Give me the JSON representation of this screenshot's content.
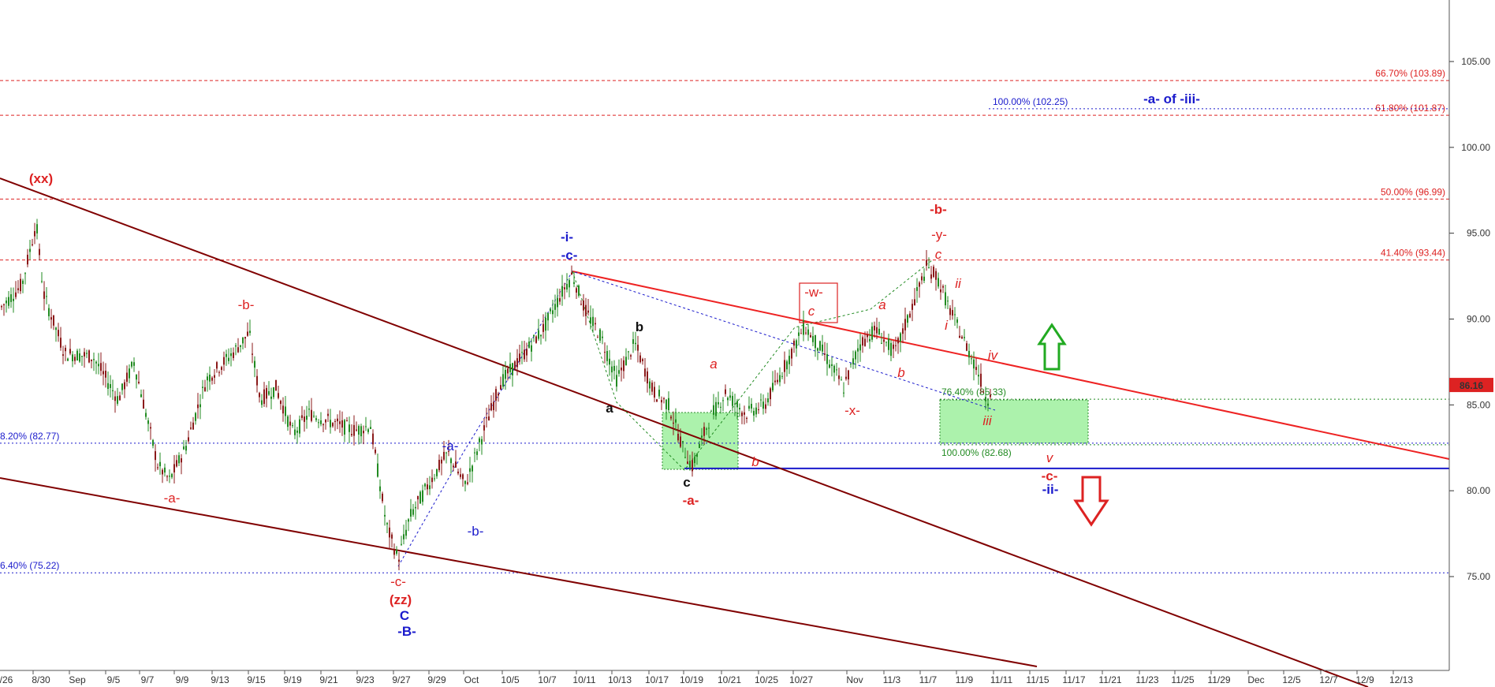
{
  "chart_data": {
    "type": "candlestick",
    "y_ticks": [
      "105.00",
      "100.00",
      "95.00",
      "90.00",
      "85.00",
      "80.00",
      "75.00"
    ],
    "y_range": [
      70.0,
      108.5
    ],
    "x_labels": [
      "/26",
      "8/30",
      "Sep",
      "9/5",
      "9/7",
      "9/9",
      "9/13",
      "9/15",
      "9/19",
      "9/21",
      "9/23",
      "9/27",
      "9/29",
      "Oct",
      "10/5",
      "10/7",
      "10/11",
      "10/13",
      "10/17",
      "10/19",
      "10/21",
      "10/25",
      "10/27",
      "Nov",
      "11/3",
      "11/7",
      "11/9",
      "11/11",
      "11/15",
      "11/17",
      "11/21",
      "11/23",
      "11/25",
      "11/29",
      "Dec",
      "12/5",
      "12/7",
      "12/9",
      "12/13"
    ],
    "last_price": "86.16",
    "horizontal_levels": [
      {
        "label": "66.70% (103.89)",
        "value": 103.89,
        "color": "#dd2222",
        "style": "dashed"
      },
      {
        "label": "61.80% (101.87)",
        "value": 101.87,
        "color": "#dd2222",
        "style": "dashed"
      },
      {
        "label": "100.00% (102.25)",
        "value": 102.25,
        "color": "#1a1acc",
        "style": "dotted"
      },
      {
        "label": "50.00% (96.99)",
        "value": 96.99,
        "color": "#dd2222",
        "style": "dashed"
      },
      {
        "label": "41.40% (93.44)",
        "value": 93.44,
        "color": "#dd2222",
        "style": "dashed"
      },
      {
        "label": "76.40% (85.33)",
        "value": 85.33,
        "color": "#228b22",
        "style": "dotted"
      },
      {
        "label": "100.00% (82.68)",
        "value": 82.68,
        "color": "#228b22",
        "style": "dotted"
      },
      {
        "label": "8.20% (82.77)",
        "value": 82.77,
        "color": "#1a1acc",
        "style": "dotted"
      },
      {
        "label": "6.40% (75.22)",
        "value": 75.22,
        "color": "#1a1acc",
        "style": "dotted"
      }
    ],
    "support_line": {
      "value": 81.3,
      "color": "#1a1acc"
    },
    "wave_labels": [
      {
        "text": "(xx)",
        "color": "#dd2222",
        "bold": true
      },
      {
        "text": "-b-",
        "color": "#dd2222",
        "bold": false
      },
      {
        "text": "-a-",
        "color": "#dd2222",
        "bold": false
      },
      {
        "text": "-a-",
        "color": "#1a1acc",
        "bold": false
      },
      {
        "text": "-b-",
        "color": "#1a1acc",
        "bold": false
      },
      {
        "text": "-c-",
        "color": "#dd2222",
        "bold": false
      },
      {
        "text": "(zz)",
        "color": "#dd2222",
        "bold": true
      },
      {
        "text": "C",
        "color": "#1a1acc",
        "bold": true
      },
      {
        "text": "-B-",
        "color": "#1a1acc",
        "bold": true
      },
      {
        "text": "-i-",
        "color": "#1a1acc",
        "bold": true
      },
      {
        "text": "-c-",
        "color": "#1a1acc",
        "bold": true
      },
      {
        "text": "b",
        "color": "#111111",
        "bold": true
      },
      {
        "text": "a",
        "color": "#111111",
        "bold": true
      },
      {
        "text": "c",
        "color": "#111111",
        "bold": true
      },
      {
        "text": "-a-",
        "color": "#dd2222",
        "bold": true
      },
      {
        "text": "a",
        "color": "#dd2222",
        "bold": false,
        "italic": true
      },
      {
        "text": "b",
        "color": "#dd2222",
        "bold": false,
        "italic": true
      },
      {
        "text": "-w-",
        "color": "#dd2222",
        "bold": false,
        "boxed": true
      },
      {
        "text": "c",
        "color": "#dd2222",
        "bold": false,
        "italic": true
      },
      {
        "text": "a",
        "color": "#dd2222",
        "bold": false,
        "italic": true
      },
      {
        "text": "b",
        "color": "#dd2222",
        "bold": false,
        "italic": true
      },
      {
        "text": "-x-",
        "color": "#dd2222",
        "bold": false
      },
      {
        "text": "-b-",
        "color": "#dd2222",
        "bold": true
      },
      {
        "text": "-y-",
        "color": "#dd2222",
        "bold": false
      },
      {
        "text": "c",
        "color": "#dd2222",
        "bold": false,
        "italic": true
      },
      {
        "text": "ii",
        "color": "#dd2222",
        "bold": false,
        "italic": true
      },
      {
        "text": "i",
        "color": "#dd2222",
        "bold": false,
        "italic": true
      },
      {
        "text": "iv",
        "color": "#dd2222",
        "bold": false,
        "italic": true
      },
      {
        "text": "iii",
        "color": "#dd2222",
        "bold": false,
        "italic": true
      },
      {
        "text": "v",
        "color": "#dd2222",
        "bold": false,
        "italic": true
      },
      {
        "text": "-c-",
        "color": "#dd2222",
        "bold": true
      },
      {
        "text": "-ii-",
        "color": "#1a1acc",
        "bold": true
      },
      {
        "text": "-a- of -iii-",
        "color": "#1a1acc",
        "bold": true
      }
    ],
    "colors": {
      "up_candle": "#228b22",
      "down_candle": "#8b1a1a",
      "trend_dark": "#800000",
      "trend_red": "#ee2222",
      "zone_fill": "#90ee90",
      "price_badge": "#dd2222"
    }
  }
}
